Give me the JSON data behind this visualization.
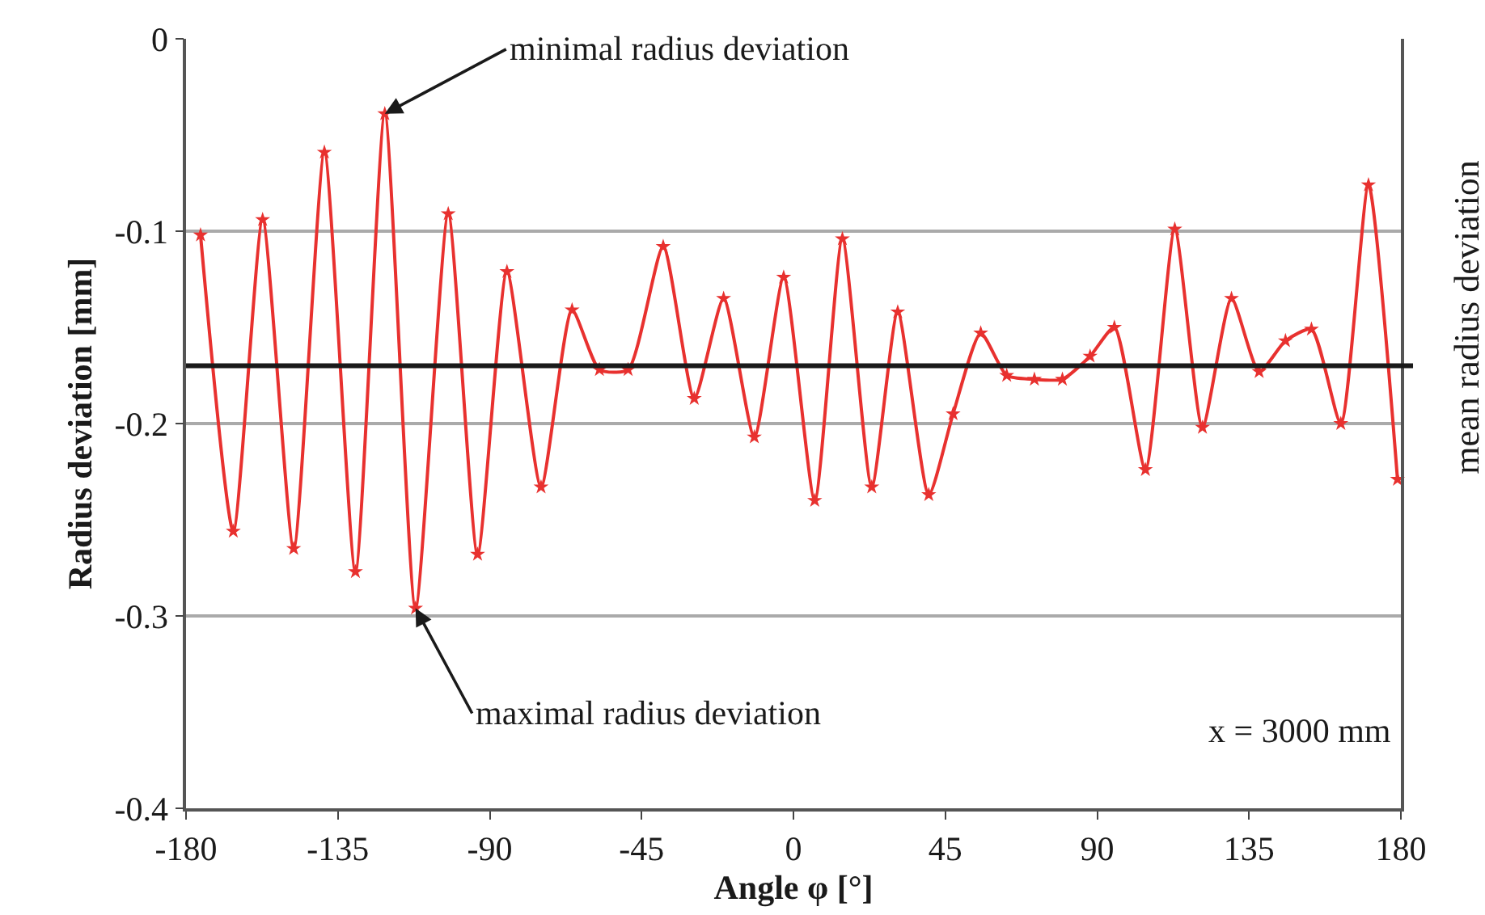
{
  "chart_data": {
    "type": "line",
    "xlabel": "Angle φ [°]",
    "ylabel": "Radius deviation [mm]",
    "x": [
      -175.7,
      -166,
      -157.3,
      -148.1,
      -139,
      -129.8,
      -121.1,
      -112,
      -102.3,
      -93.6,
      -84.9,
      -74.8,
      -65.6,
      -57.5,
      -49,
      -38.6,
      -29.4,
      -20.7,
      -11.6,
      -2.9,
      6.3,
      14.5,
      23.2,
      30.9,
      40.1,
      47.3,
      55.5,
      63.2,
      71.4,
      79.7,
      87.9,
      95.1,
      104.3,
      113,
      121.2,
      129.8,
      138,
      145.8,
      153.5,
      162.2,
      170.4,
      179
    ],
    "series": [
      {
        "color": "#e8312f",
        "values": [
          -0.102,
          -0.256,
          -0.094,
          -0.265,
          -0.059,
          -0.277,
          -0.039,
          -0.296,
          -0.091,
          -0.268,
          -0.121,
          -0.233,
          -0.141,
          -0.172,
          -0.172,
          -0.108,
          -0.187,
          -0.135,
          -0.207,
          -0.124,
          -0.24,
          -0.104,
          -0.233,
          -0.142,
          -0.237,
          -0.195,
          -0.153,
          -0.175,
          -0.177,
          -0.177,
          -0.165,
          -0.15,
          -0.224,
          -0.099,
          -0.202,
          -0.135,
          -0.173,
          -0.157,
          -0.151,
          -0.2,
          -0.076,
          -0.229
        ]
      }
    ],
    "xlim": [
      -180,
      180
    ],
    "xticks": [
      -180,
      -135,
      -90,
      -45,
      0,
      45,
      90,
      135,
      180
    ],
    "ylim": [
      -0.4,
      0
    ],
    "yticks": [
      {
        "value": -0.4,
        "label": "-0.4"
      },
      {
        "value": -0.3,
        "label": "-0.3"
      },
      {
        "value": -0.2,
        "label": "-0.2"
      },
      {
        "value": -0.1,
        "label": "-0.1"
      },
      0
    ],
    "grid": "y",
    "marker": "star",
    "line_style": "solid",
    "legend": false,
    "ref_lines": [
      {
        "axis": "y",
        "value": -0.17,
        "label": "mean radius deviation",
        "color": "#1a1a1a"
      }
    ],
    "annotations": [
      {
        "text": "minimal radius deviation",
        "x": -121.1,
        "y": -0.039
      },
      {
        "text": "maximal radius deviation",
        "x": -112,
        "y": -0.296
      },
      "x = 3000 mm"
    ]
  }
}
